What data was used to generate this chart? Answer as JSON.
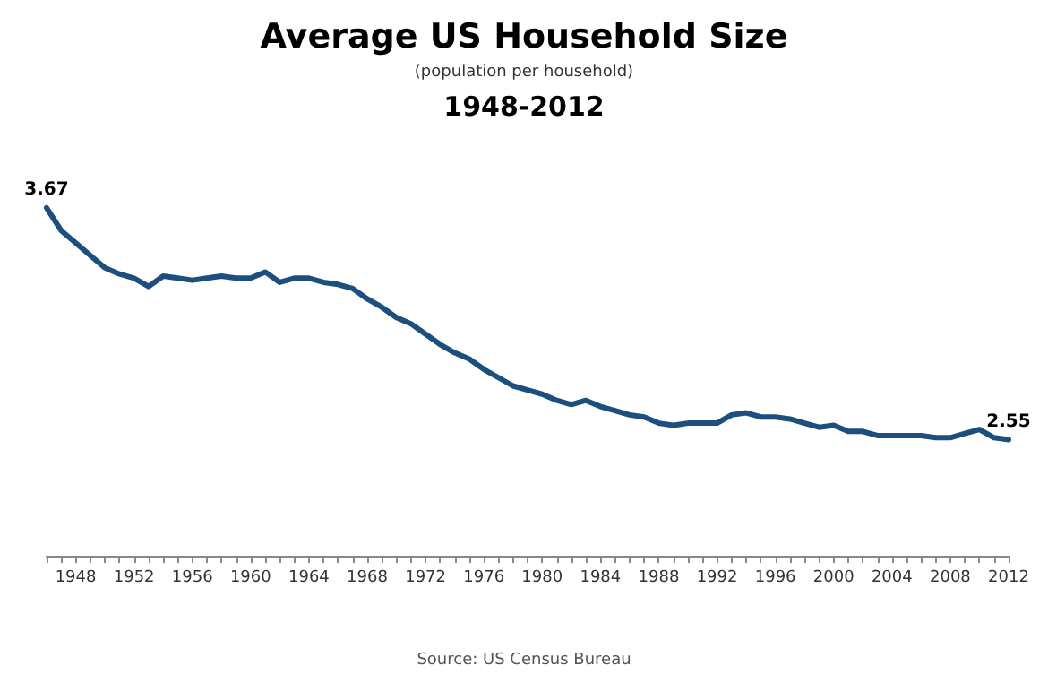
{
  "chart_data": {
    "type": "line",
    "title": "Average US Household Size",
    "subtitle": "(population per household)",
    "annotations": [
      "1948-2012",
      "Source: US Census Bureau"
    ],
    "categories": [
      null,
      null,
      "1948",
      null,
      null,
      null,
      "1952",
      null,
      null,
      null,
      "1956",
      null,
      null,
      null,
      "1960",
      null,
      null,
      null,
      "1964",
      null,
      null,
      null,
      "1968",
      null,
      null,
      null,
      "1972",
      null,
      null,
      null,
      "1976",
      null,
      null,
      null,
      "1980",
      null,
      null,
      null,
      "1984",
      null,
      null,
      null,
      "1988",
      null,
      null,
      null,
      "1992",
      null,
      null,
      null,
      "1996",
      null,
      null,
      null,
      "2000",
      null,
      null,
      null,
      "2004",
      null,
      null,
      null,
      "2008",
      null,
      null,
      null,
      "2012"
    ],
    "series": [
      {
        "color": "#1d4f7e",
        "values": [
          3.67,
          3.56,
          3.5,
          3.44,
          3.38,
          3.35,
          3.33,
          3.29,
          3.34,
          3.33,
          3.32,
          3.33,
          3.34,
          3.33,
          3.33,
          3.36,
          3.31,
          3.33,
          3.33,
          3.31,
          3.3,
          3.28,
          3.23,
          3.19,
          3.14,
          3.11,
          3.06,
          3.01,
          2.97,
          2.94,
          2.89,
          2.85,
          2.81,
          2.79,
          2.77,
          2.74,
          2.72,
          2.74,
          2.71,
          2.69,
          2.67,
          2.66,
          2.63,
          2.62,
          2.63,
          2.63,
          2.63,
          2.67,
          2.68,
          2.66,
          2.66,
          2.65,
          2.63,
          2.61,
          2.62,
          2.59,
          2.59,
          2.57,
          2.57,
          2.57,
          2.57,
          2.56,
          2.56,
          2.58,
          2.6,
          2.56,
          2.55
        ],
        "value_labels": [
          "3.67",
          null,
          null,
          null,
          null,
          null,
          null,
          null,
          null,
          null,
          null,
          null,
          null,
          null,
          null,
          null,
          null,
          null,
          null,
          null,
          null,
          null,
          null,
          null,
          null,
          null,
          null,
          null,
          null,
          null,
          null,
          null,
          null,
          null,
          null,
          null,
          null,
          null,
          null,
          null,
          null,
          null,
          null,
          null,
          null,
          null,
          null,
          null,
          null,
          null,
          null,
          null,
          null,
          null,
          null,
          null,
          null,
          null,
          null,
          null,
          null,
          null,
          null,
          null,
          null,
          null,
          "2.55"
        ]
      }
    ],
    "tick_labels": "x",
    "grid": false,
    "marker": "none",
    "line_style": "solid"
  }
}
